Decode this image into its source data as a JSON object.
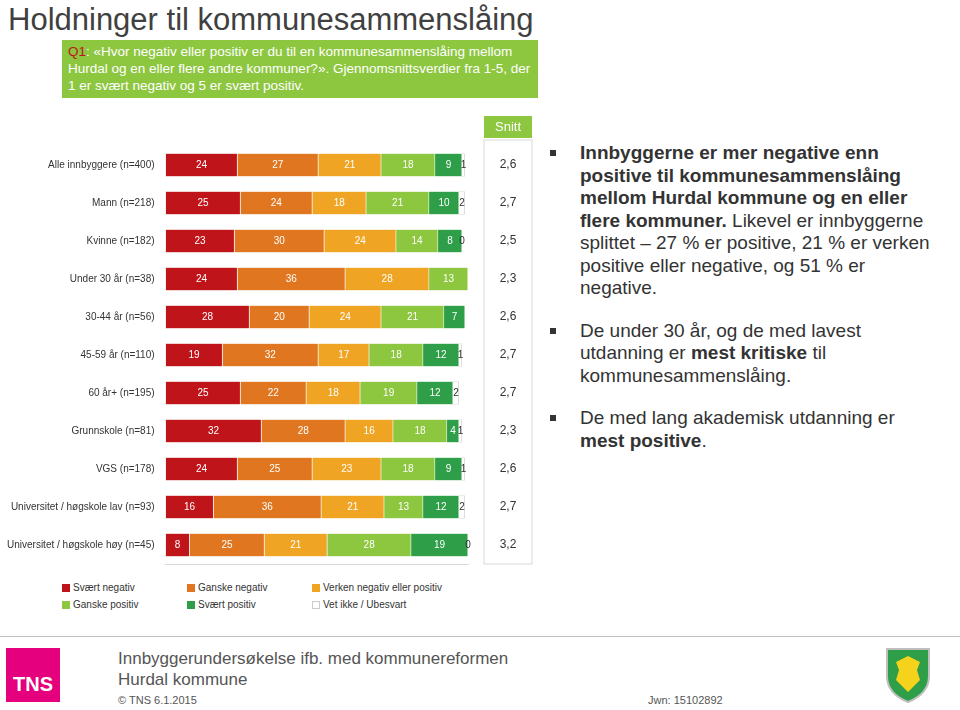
{
  "header": {
    "title": "Holdninger til kommunesammenslåing",
    "question_label": "Q1",
    "question": ": «Hvor negativ eller positiv er du til en kommunesammenslåing mellom Hurdal og en eller flere andre kommuner?». Gjennomsnittsverdier fra 1-5, der 1 er svært negativ og 5 er svært positiv."
  },
  "chart_data": {
    "type": "bar",
    "orientation": "horizontal",
    "stacked": true,
    "data_labels": true,
    "tick_labels": "y",
    "grid": false,
    "legend": "bottom",
    "categories": [
      "Alle innbyggere (n=400)",
      "Mann (n=218)",
      "Kvinne (n=182)",
      "Under 30 år (n=38)",
      "30-44 år (n=56)",
      "45-59 år (n=110)",
      "60 år+ (n=195)",
      "Grunnskole (n=81)",
      "VGS (n=178)",
      "Universitet / høgskole lav (n=93)",
      "Universitet / høgskole høy (n=45)"
    ],
    "xlim": [
      0,
      101
    ],
    "series": [
      {
        "name": "Svært negativ",
        "color": "#c0141b",
        "values": [
          24,
          25,
          23,
          24,
          28,
          19,
          25,
          32,
          24,
          16,
          8
        ]
      },
      {
        "name": "Ganske negativ",
        "color": "#e0761f",
        "values": [
          27,
          24,
          30,
          36,
          20,
          32,
          22,
          28,
          25,
          36,
          25
        ]
      },
      {
        "name": "Verken negativ eller positiv",
        "color": "#f0a424",
        "values": [
          21,
          18,
          24,
          28,
          24,
          17,
          18,
          16,
          23,
          21,
          21
        ]
      },
      {
        "name": "Ganske positiv",
        "color": "#8dc63f",
        "values": [
          18,
          21,
          14,
          13,
          21,
          18,
          19,
          18,
          18,
          13,
          28
        ]
      },
      {
        "name": "Svært positiv",
        "color": "#2e9e48",
        "values": [
          9,
          10,
          8,
          null,
          7,
          12,
          12,
          4,
          9,
          12,
          19
        ]
      },
      {
        "name": "Vet ikke / Ubesvart",
        "color": "#ffffff",
        "values": [
          1,
          2,
          0,
          null,
          null,
          1,
          2,
          1,
          1,
          2,
          0
        ]
      }
    ],
    "means": {
      "title": "Snitt",
      "values": [
        2.6,
        2.7,
        2.5,
        2.3,
        2.6,
        2.7,
        2.7,
        2.3,
        2.6,
        2.7,
        3.2
      ],
      "value_labels": [
        "2,6",
        "2,7",
        "2,5",
        "2,3",
        "2,6",
        "2,7",
        "2,7",
        "2,3",
        "2,6",
        "2,7",
        "3,2"
      ]
    }
  },
  "bullets": [
    [
      {
        "text": "Innbyggerne er mer negative enn positive til kommunesammenslåing mellom Hurdal kommune og en eller flere kommuner.",
        "bold": true
      },
      {
        "text": " Likevel er innbyggerne splittet – 27 % er positive, 21 % er verken positive eller negative, og 51 % er negative.",
        "bold": false
      }
    ],
    [
      {
        "text": "De under 30 år, og de med lavest utdanning er ",
        "bold": false
      },
      {
        "text": "mest kritiske",
        "bold": true
      },
      {
        "text": " til kommunesammenslåing.",
        "bold": false
      }
    ],
    [
      {
        "text": "De med lang akademisk utdanning er ",
        "bold": false
      },
      {
        "text": "mest positive",
        "bold": true
      },
      {
        "text": ".",
        "bold": false
      }
    ]
  ],
  "footer": {
    "logo": "TNS",
    "text": "Innbyggerundersøkelse ifb. med kommunereformen Hurdal kommune",
    "copyright": "© TNS 6.1.2015",
    "job": "Jwn: 15102892"
  }
}
